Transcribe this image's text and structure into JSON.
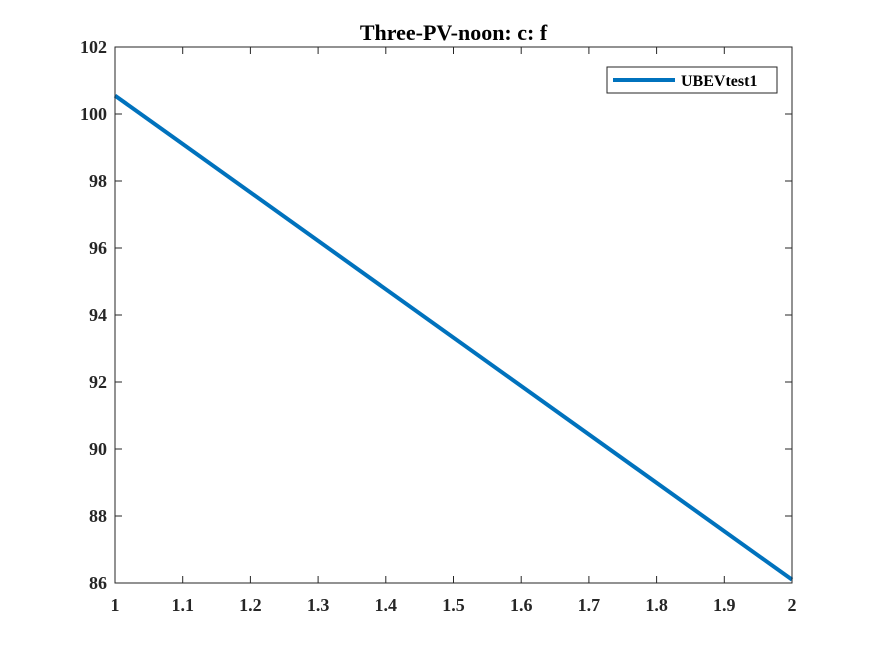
{
  "chart_data": {
    "type": "line",
    "title": "Three-PV-noon: c: f",
    "xlabel": "",
    "ylabel": "",
    "xlim": [
      1,
      2
    ],
    "ylim": [
      86,
      102
    ],
    "xticks": [
      1,
      1.1,
      1.2,
      1.3,
      1.4,
      1.5,
      1.6,
      1.7,
      1.8,
      1.9,
      2
    ],
    "xtick_labels": [
      "1",
      "1.1",
      "1.2",
      "1.3",
      "1.4",
      "1.5",
      "1.6",
      "1.7",
      "1.8",
      "1.9",
      "2"
    ],
    "yticks": [
      86,
      88,
      90,
      92,
      94,
      96,
      98,
      100,
      102
    ],
    "ytick_labels": [
      "86",
      "88",
      "90",
      "92",
      "94",
      "96",
      "98",
      "100",
      "102"
    ],
    "grid": false,
    "legend_position": "top-right",
    "series": [
      {
        "name": "UBEVtest1",
        "color": "#0072BD",
        "x": [
          1,
          2
        ],
        "y": [
          100.55,
          86.1
        ]
      }
    ]
  }
}
